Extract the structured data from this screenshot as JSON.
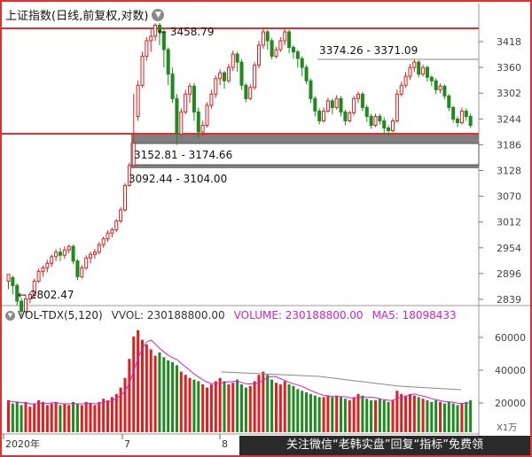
{
  "window": {
    "title": "上证指数(日线,前复权,对数)",
    "title_dropdown_icon": "chevron-down-icon"
  },
  "price_axis": {
    "ticks": [
      "3418",
      "3360",
      "3302",
      "3244",
      "3186",
      "3128",
      "3070",
      "3012",
      "2954",
      "2896",
      "2839"
    ]
  },
  "annotations": {
    "high": "3458.79",
    "low": "2802.47",
    "gap_top": "3374.26 - 3371.09",
    "gap_mid": "3152.81 - 3174.66",
    "gap_low": "3092.44 - 3104.00"
  },
  "volume_panel": {
    "indicator": "VOL-TDX(5,120)",
    "vvol": "VVOL: 230188800.00",
    "volume": "VOLUME: 230188800.00",
    "ma5": "MA5: 18098433",
    "ticks": [
      "60000",
      "40000",
      "20000"
    ],
    "unit": "X1万"
  },
  "date_axis": {
    "labels": [
      "2020年",
      "7",
      "8"
    ]
  },
  "watermark": "关注微信“老韩实盘”回复“指标”免费领",
  "colors": {
    "up": "#e02020",
    "down": "#1f8a1f",
    "frame": "#e03030",
    "ma": "#d020d0",
    "gap_band": "#7f7f7f"
  }
}
